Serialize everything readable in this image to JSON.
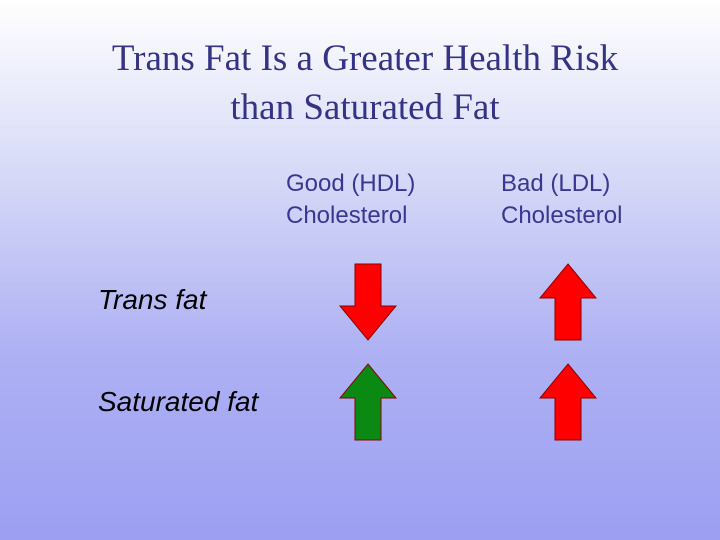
{
  "title": {
    "line1": "Trans Fat Is a Greater Health Risk",
    "line2": "than Saturated Fat"
  },
  "columns": {
    "hdl": {
      "line1": "Good (HDL)",
      "line2": "Cholesterol"
    },
    "ldl": {
      "line1": "Bad (LDL)",
      "line2": "Cholesterol"
    }
  },
  "rows": {
    "trans": {
      "label": "Trans fat",
      "hdl_effect": "down",
      "ldl_effect": "up"
    },
    "saturated": {
      "label": "Saturated fat",
      "hdl_effect": "up",
      "ldl_effect": "up"
    }
  },
  "colors": {
    "title": "#353384",
    "column_heading": "#3a3790",
    "harmful_arrow": "#ff0000",
    "beneficial_arrow": "#0a8a12",
    "arrow_outline": "#8a0000"
  }
}
